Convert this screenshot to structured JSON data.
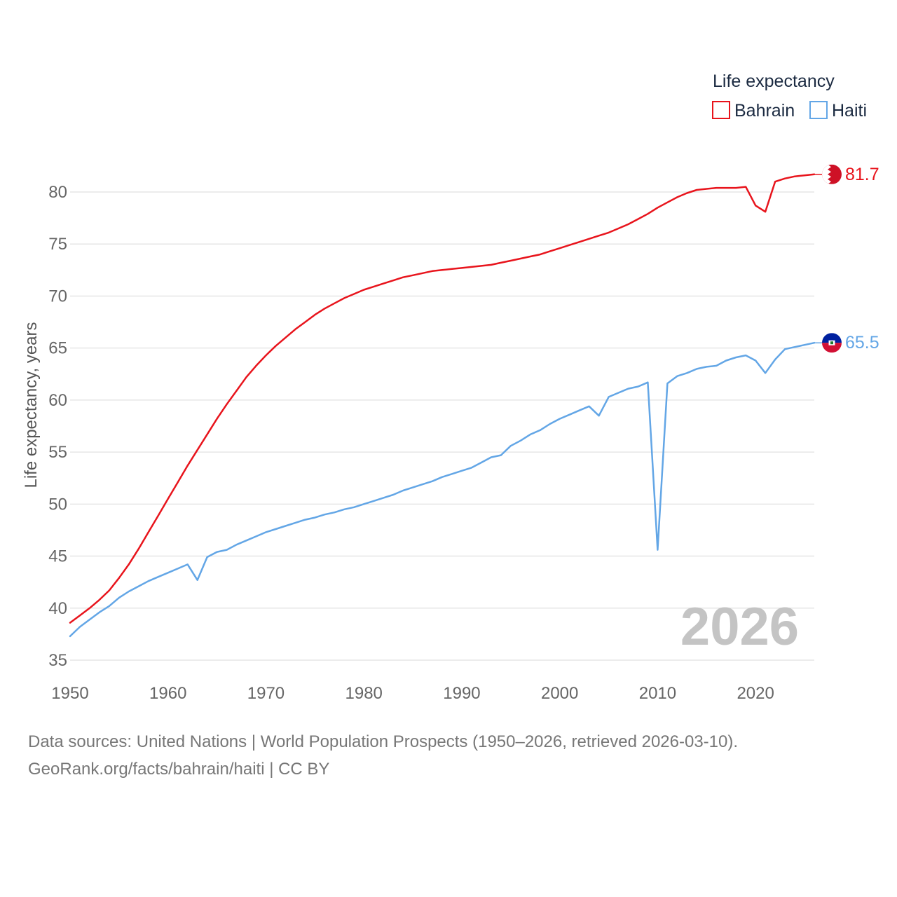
{
  "colors": {
    "bahrain": "#e8141c",
    "haiti": "#63a6e6",
    "grid": "#e6e6e6"
  },
  "footer": {
    "line1": "Data sources: United Nations | World Population Prospects (1950–2026, retrieved 2026-03-10).",
    "line2": "GeoRank.org/facts/bahrain/haiti | CC BY"
  },
  "chart_data": {
    "type": "line",
    "ylabel": "Life expectancy, years",
    "xlabel": "",
    "xlim": [
      1950,
      2026
    ],
    "ylim": [
      35,
      82
    ],
    "xticks": [
      1950,
      1960,
      1970,
      1980,
      1990,
      2000,
      2010,
      2020
    ],
    "yticks": [
      35,
      40,
      45,
      50,
      55,
      60,
      65,
      70,
      75,
      80
    ],
    "watermark_year": "2026",
    "legend": {
      "title": "Life expectancy",
      "position": "top-right",
      "items": [
        "Bahrain",
        "Haiti"
      ]
    },
    "x": [
      1950,
      1951,
      1952,
      1953,
      1954,
      1955,
      1956,
      1957,
      1958,
      1959,
      1960,
      1961,
      1962,
      1963,
      1964,
      1965,
      1966,
      1967,
      1968,
      1969,
      1970,
      1971,
      1972,
      1973,
      1974,
      1975,
      1976,
      1977,
      1978,
      1979,
      1980,
      1981,
      1982,
      1983,
      1984,
      1985,
      1986,
      1987,
      1988,
      1989,
      1990,
      1991,
      1992,
      1993,
      1994,
      1995,
      1996,
      1997,
      1998,
      1999,
      2000,
      2001,
      2002,
      2003,
      2004,
      2005,
      2006,
      2007,
      2008,
      2009,
      2010,
      2011,
      2012,
      2013,
      2014,
      2015,
      2016,
      2017,
      2018,
      2019,
      2020,
      2021,
      2022,
      2023,
      2024,
      2025,
      2026
    ],
    "series": [
      {
        "name": "Bahrain",
        "end_label": "81.7",
        "flag": "bahrain-flag",
        "values": [
          38.6,
          39.3,
          40.0,
          40.8,
          41.7,
          42.9,
          44.2,
          45.7,
          47.3,
          48.9,
          50.5,
          52.1,
          53.7,
          55.2,
          56.7,
          58.2,
          59.6,
          60.9,
          62.2,
          63.3,
          64.3,
          65.2,
          66.0,
          66.8,
          67.5,
          68.2,
          68.8,
          69.3,
          69.8,
          70.2,
          70.6,
          70.9,
          71.2,
          71.5,
          71.8,
          72.0,
          72.2,
          72.4,
          72.5,
          72.6,
          72.7,
          72.8,
          72.9,
          73.0,
          73.2,
          73.4,
          73.6,
          73.8,
          74.0,
          74.3,
          74.6,
          74.9,
          75.2,
          75.5,
          75.8,
          76.1,
          76.5,
          76.9,
          77.4,
          77.9,
          78.5,
          79.0,
          79.5,
          79.9,
          80.2,
          80.3,
          80.4,
          80.4,
          80.4,
          80.5,
          78.7,
          78.1,
          81.0,
          81.3,
          81.5,
          81.6,
          81.7
        ]
      },
      {
        "name": "Haiti",
        "end_label": "65.5",
        "flag": "haiti-flag",
        "values": [
          37.3,
          38.2,
          38.9,
          39.6,
          40.2,
          41.0,
          41.6,
          42.1,
          42.6,
          43.0,
          43.4,
          43.8,
          44.2,
          42.7,
          44.9,
          45.4,
          45.6,
          46.1,
          46.5,
          46.9,
          47.3,
          47.6,
          47.9,
          48.2,
          48.5,
          48.7,
          49.0,
          49.2,
          49.5,
          49.7,
          50.0,
          50.3,
          50.6,
          50.9,
          51.3,
          51.6,
          51.9,
          52.2,
          52.6,
          52.9,
          53.2,
          53.5,
          54.0,
          54.5,
          54.7,
          55.6,
          56.1,
          56.7,
          57.1,
          57.7,
          58.2,
          58.6,
          59.0,
          59.4,
          58.5,
          60.3,
          60.7,
          61.1,
          61.3,
          61.7,
          45.6,
          61.6,
          62.3,
          62.6,
          63.0,
          63.2,
          63.3,
          63.8,
          64.1,
          64.3,
          63.8,
          62.6,
          63.9,
          64.9,
          65.1,
          65.3,
          65.5
        ]
      }
    ]
  }
}
